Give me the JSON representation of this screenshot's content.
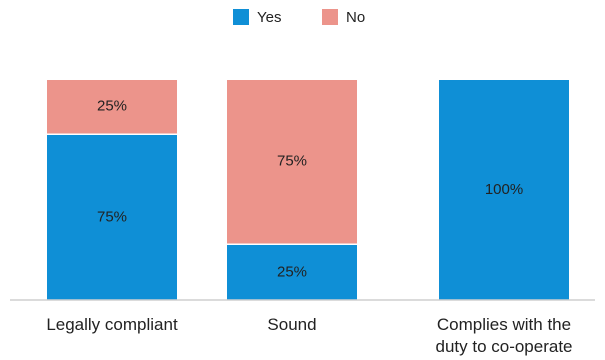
{
  "chart_data": {
    "type": "bar",
    "stacked": true,
    "percent": true,
    "categories": [
      "Legally compliant",
      "Sound",
      "Complies with the duty to co-operate"
    ],
    "category_lines": [
      [
        "Legally compliant"
      ],
      [
        "Sound"
      ],
      [
        "Complies with the",
        "duty to co-operate"
      ]
    ],
    "series": [
      {
        "name": "Yes",
        "values": [
          75,
          25,
          100
        ],
        "labels": [
          "75%",
          "25%",
          "100%"
        ],
        "color": "#0f8fd6"
      },
      {
        "name": "No",
        "values": [
          25,
          75,
          0
        ],
        "labels": [
          "25%",
          "75%",
          ""
        ],
        "color": "#ec948b"
      }
    ],
    "ylim": [
      0,
      100
    ],
    "legend": "top-center",
    "grid": false
  }
}
